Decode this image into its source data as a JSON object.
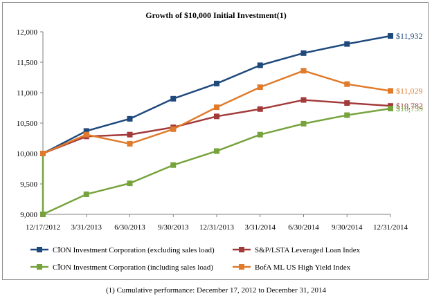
{
  "chart_data": {
    "type": "line",
    "title": "Growth of $10,000 Initial Investment(1)",
    "x": [
      "12/17/2012",
      "3/31/2013",
      "6/30/2013",
      "9/30/2013",
      "12/31/2013",
      "3/31/2014",
      "6/30/2014",
      "9/30/2014",
      "12/31/2014"
    ],
    "ylim": [
      9000,
      12000
    ],
    "yticks": [
      9000,
      9500,
      10000,
      10500,
      11000,
      11500,
      12000
    ],
    "ytick_labels": [
      "9,000",
      "9,500",
      "10,000",
      "10,500",
      "11,000",
      "11,500",
      "12,000"
    ],
    "grid": false,
    "legend_position": "bottom",
    "series": [
      {
        "name": "CĪON Investment Corporation (excluding sales load)",
        "color": "#1f497d",
        "marker": "square",
        "values": [
          10000,
          10370,
          10570,
          10900,
          11150,
          11450,
          11650,
          11800,
          11932
        ],
        "end_label": "$11,932"
      },
      {
        "name": "S&P/LSTA Leveraged Loan Index",
        "color": "#a33a3a",
        "marker": "square",
        "values": [
          10000,
          10280,
          10310,
          10430,
          10610,
          10730,
          10880,
          10830,
          10782
        ],
        "end_label": "$10,782"
      },
      {
        "name": "CĪON Investment Corporation (including sales load)",
        "color": "#77a33d",
        "marker": "square",
        "points": [
          [
            0,
            10000
          ],
          [
            0,
            9000
          ],
          [
            1,
            9330
          ],
          [
            2,
            9510
          ],
          [
            3,
            9810
          ],
          [
            4,
            10040
          ],
          [
            5,
            10310
          ],
          [
            6,
            10490
          ],
          [
            7,
            10630
          ],
          [
            8,
            10739
          ]
        ],
        "end_label": "$10,739"
      },
      {
        "name": "BofA ML US High Yield Index",
        "color": "#e07b2c",
        "marker": "square",
        "values": [
          10000,
          10310,
          10160,
          10400,
          10760,
          11090,
          11360,
          11140,
          11029
        ],
        "end_label": "$11,029"
      }
    ]
  },
  "footnote": "(1) Cumulative performance: December 17, 2012 to December 31, 2014"
}
